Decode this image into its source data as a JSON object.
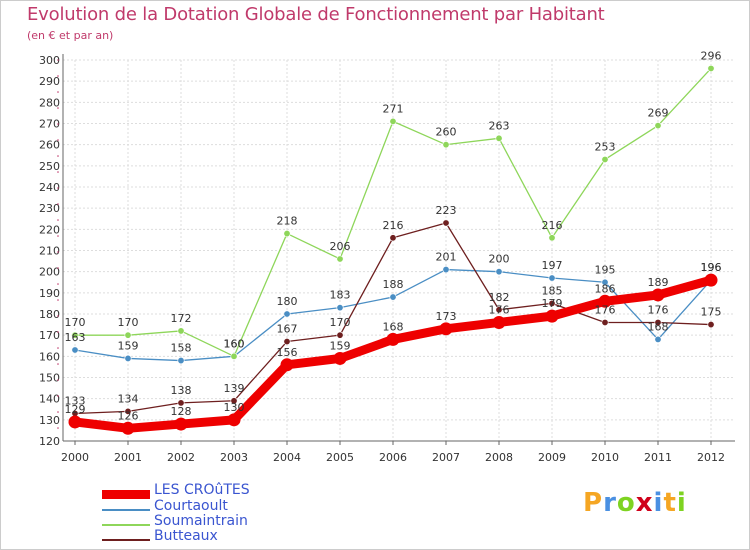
{
  "header": {
    "title": "Evolution de la Dotation Globale de Fonctionnement par Habitant",
    "subtitle": "(en € et par an)"
  },
  "brand": {
    "letters": [
      "P",
      "r",
      "o",
      "x",
      "i",
      "t",
      "i"
    ],
    "colors": [
      "#f5a623",
      "#4a90e2",
      "#7ed321",
      "#d0021b",
      "#4a90e2",
      "#f5a623",
      "#7ed321"
    ]
  },
  "chart_data": {
    "type": "line",
    "title": "Evolution de la Dotation Globale de Fonctionnement par Habitant",
    "subtitle": "(en € et par an)",
    "xlabel": "",
    "ylabel": "",
    "categories": [
      "2000",
      "2001",
      "2002",
      "2003",
      "2004",
      "2005",
      "2006",
      "2007",
      "2008",
      "2009",
      "2010",
      "2011",
      "2012"
    ],
    "ylim": [
      120,
      300
    ],
    "yticks": [
      120,
      130,
      140,
      150,
      160,
      170,
      180,
      190,
      200,
      210,
      220,
      230,
      240,
      250,
      260,
      270,
      280,
      290,
      300
    ],
    "grid": true,
    "legend_position": "bottom-left",
    "series": [
      {
        "name": "LES CROûTES",
        "color": "#ee0000",
        "values": [
          129,
          126,
          128,
          130,
          156,
          159,
          168,
          173,
          176,
          179,
          186,
          189,
          196
        ]
      },
      {
        "name": "Courtaoult",
        "color": "#4a8ec4",
        "values": [
          163,
          159,
          158,
          160,
          180,
          183,
          188,
          201,
          200,
          197,
          195,
          168,
          196
        ]
      },
      {
        "name": "Soumaintrain",
        "color": "#8ed65a",
        "values": [
          170,
          170,
          172,
          160,
          218,
          206,
          271,
          260,
          263,
          216,
          253,
          269,
          296
        ]
      },
      {
        "name": "Butteaux",
        "color": "#6e1f1f",
        "values": [
          133,
          134,
          138,
          139,
          167,
          170,
          216,
          223,
          182,
          185,
          176,
          176,
          175
        ]
      }
    ]
  }
}
